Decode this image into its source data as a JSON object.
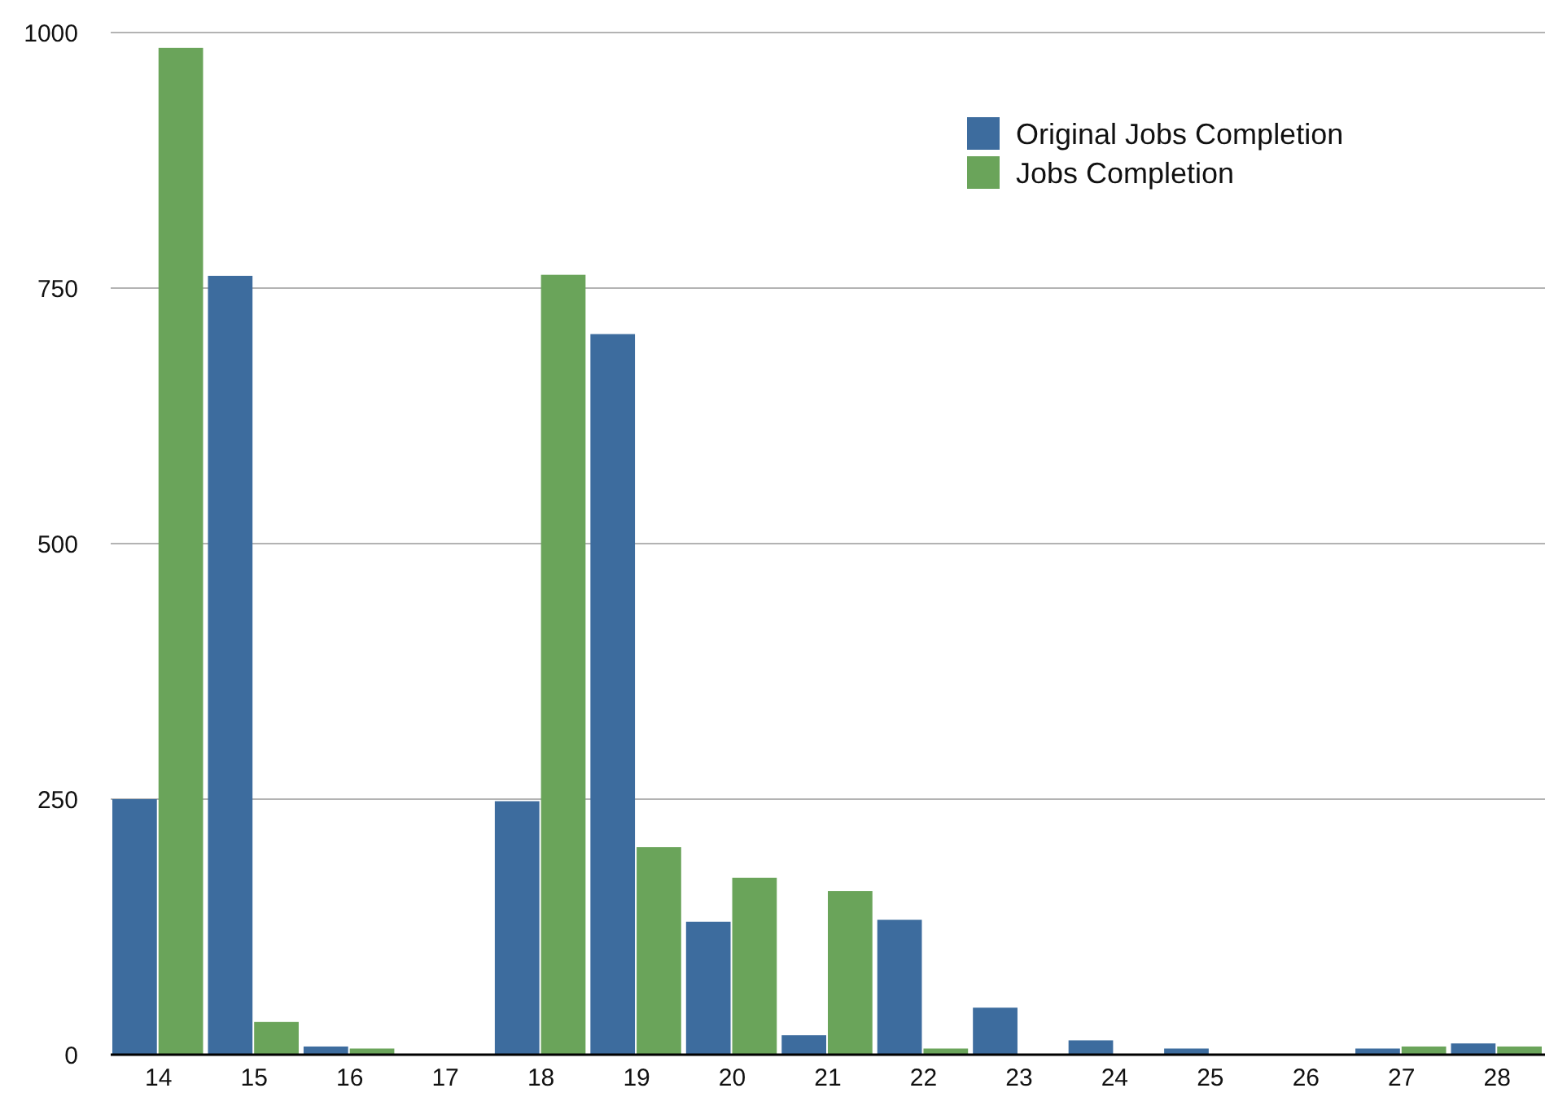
{
  "chart_data": {
    "type": "bar",
    "categories": [
      "14",
      "15",
      "16",
      "17",
      "18",
      "19",
      "20",
      "21",
      "22",
      "23",
      "24",
      "25",
      "26",
      "27",
      "28"
    ],
    "series": [
      {
        "name": "Original Jobs Completion",
        "color": "#3d6c9e",
        "values": [
          250,
          762,
          8,
          0,
          248,
          705,
          130,
          19,
          132,
          46,
          14,
          6,
          0,
          6,
          11
        ]
      },
      {
        "name": "Jobs Completion",
        "color": "#6aa45a",
        "values": [
          985,
          32,
          6,
          0,
          763,
          203,
          173,
          160,
          6,
          0,
          0,
          0,
          0,
          8,
          8
        ]
      }
    ],
    "ylim": [
      0,
      1000
    ],
    "yticks": [
      0,
      250,
      500,
      750,
      1000
    ],
    "grid": "y",
    "legend": "top right"
  }
}
